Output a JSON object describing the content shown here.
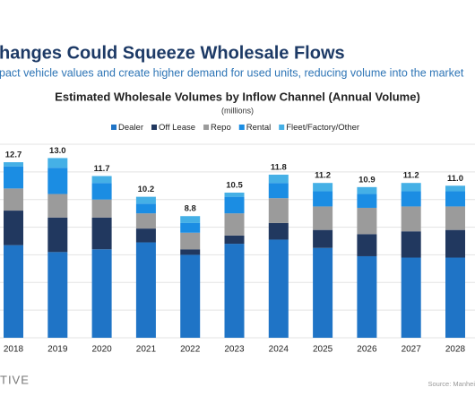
{
  "header": {
    "title": "hanges Could Squeeze Wholesale Flows",
    "subtitle": "pact vehicle values and create higher demand for used units, reducing volume into the market"
  },
  "chart_data": {
    "type": "stacked_bar",
    "title": "Estimated Wholesale Volumes by Inflow Channel (Annual Volume)",
    "subtitle": "(millions)",
    "categories": [
      "2018",
      "2019",
      "2020",
      "2021",
      "2022",
      "2023",
      "2024",
      "2025",
      "2026",
      "2027",
      "2028"
    ],
    "series": [
      {
        "name": "Dealer",
        "color": "#1f74c6",
        "values": [
          6.7,
          6.2,
          6.4,
          6.9,
          6.0,
          6.8,
          7.1,
          6.5,
          5.9,
          5.8,
          5.8
        ]
      },
      {
        "name": "Off Lease",
        "color": "#21385f",
        "values": [
          2.5,
          2.5,
          2.3,
          1.0,
          0.4,
          0.6,
          1.2,
          1.3,
          1.6,
          1.9,
          2.0
        ]
      },
      {
        "name": "Repo",
        "color": "#9b9b9b",
        "values": [
          1.6,
          1.7,
          1.3,
          1.1,
          1.2,
          1.6,
          1.8,
          1.7,
          1.9,
          1.8,
          1.7
        ]
      },
      {
        "name": "Rental",
        "color": "#1b8de3",
        "values": [
          1.6,
          1.9,
          1.2,
          0.7,
          0.7,
          1.2,
          1.1,
          1.1,
          1.0,
          1.1,
          1.1
        ]
      },
      {
        "name": "Fleet/Factory/Other",
        "color": "#45b0e6",
        "values": [
          0.3,
          0.7,
          0.5,
          0.5,
          0.5,
          0.3,
          0.6,
          0.6,
          0.5,
          0.6,
          0.4
        ]
      }
    ],
    "totals": [
      12.7,
      13.0,
      11.7,
      10.2,
      8.8,
      10.5,
      11.8,
      11.2,
      10.9,
      11.2,
      11.0
    ],
    "total_labels": [
      "12.7",
      "13.0",
      "11.7",
      "10.2",
      "8.8",
      "10.5",
      "11.8",
      "11.2",
      "10.9",
      "11.2",
      "11.0"
    ],
    "ylim": [
      0,
      14
    ],
    "yticks": [
      0,
      2,
      4,
      6,
      8,
      10,
      12,
      14
    ],
    "grid": true,
    "legend": "top"
  },
  "footer": {
    "logo": "TIVE",
    "source": "Source: Manhei"
  }
}
